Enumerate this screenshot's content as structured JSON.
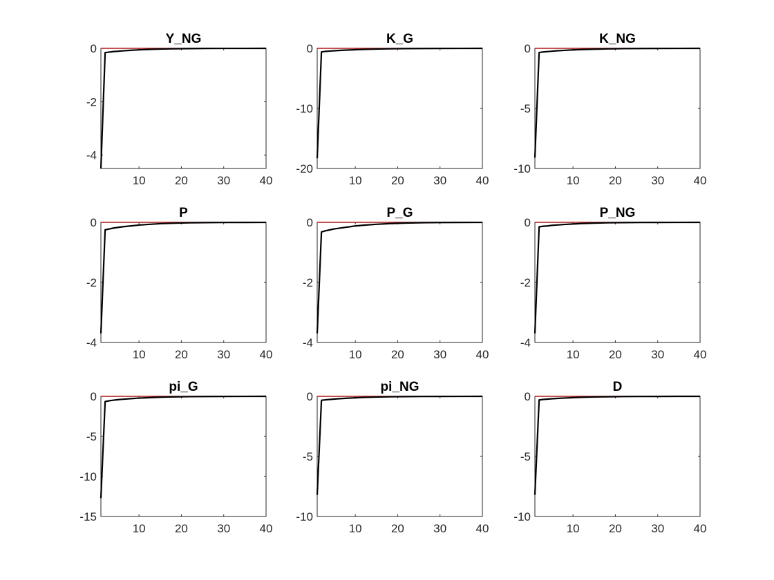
{
  "figure": {
    "rows": 3,
    "cols": 3,
    "line_color": "#000000",
    "zero_line_color": "#b01818",
    "axis_color": "#262626"
  },
  "chart_data": [
    {
      "type": "line",
      "title": "Y_NG",
      "xlabel": "",
      "ylabel": "",
      "xlim": [
        1,
        40
      ],
      "ylim": [
        -4.5,
        0
      ],
      "xticks": [
        10,
        20,
        30,
        40
      ],
      "yticks": [
        0,
        -2,
        -4
      ],
      "x": [
        1,
        2,
        3,
        4,
        5,
        6,
        8,
        10,
        12,
        15,
        18,
        22,
        26,
        30,
        35,
        40
      ],
      "series": [
        {
          "values": [
            -4.5,
            -0.16,
            -0.14,
            -0.12,
            -0.11,
            -0.095,
            -0.075,
            -0.057,
            -0.043,
            -0.027,
            -0.017,
            -0.009,
            -0.004,
            -0.002,
            -0.001,
            0
          ]
        }
      ],
      "reference_line": 0
    },
    {
      "type": "line",
      "title": "K_G",
      "xlabel": "",
      "ylabel": "",
      "xlim": [
        1,
        40
      ],
      "ylim": [
        -20,
        0
      ],
      "xticks": [
        10,
        20,
        30,
        40
      ],
      "yticks": [
        0,
        -10,
        -20
      ],
      "x": [
        1,
        2,
        3,
        4,
        5,
        6,
        8,
        10,
        12,
        15,
        18,
        22,
        26,
        30,
        35,
        40
      ],
      "series": [
        {
          "values": [
            -18.3,
            -0.6,
            -0.5,
            -0.45,
            -0.4,
            -0.36,
            -0.29,
            -0.23,
            -0.18,
            -0.12,
            -0.08,
            -0.045,
            -0.025,
            -0.013,
            -0.006,
            -0.002
          ]
        }
      ],
      "reference_line": 0
    },
    {
      "type": "line",
      "title": "K_NG",
      "xlabel": "",
      "ylabel": "",
      "xlim": [
        1,
        40
      ],
      "ylim": [
        -10,
        0
      ],
      "xticks": [
        10,
        20,
        30,
        40
      ],
      "yticks": [
        0,
        -5,
        -10
      ],
      "x": [
        1,
        2,
        3,
        4,
        5,
        6,
        8,
        10,
        12,
        15,
        18,
        22,
        26,
        30,
        35,
        40
      ],
      "series": [
        {
          "values": [
            -9.1,
            -0.35,
            -0.3,
            -0.27,
            -0.24,
            -0.21,
            -0.17,
            -0.13,
            -0.1,
            -0.07,
            -0.045,
            -0.025,
            -0.013,
            -0.007,
            -0.003,
            -0.001
          ]
        }
      ],
      "reference_line": 0
    },
    {
      "type": "line",
      "title": "P",
      "xlabel": "",
      "ylabel": "",
      "xlim": [
        1,
        40
      ],
      "ylim": [
        -4,
        0
      ],
      "xticks": [
        10,
        20,
        30,
        40
      ],
      "yticks": [
        0,
        -2,
        -4
      ],
      "x": [
        1,
        2,
        3,
        4,
        5,
        6,
        8,
        10,
        12,
        15,
        18,
        22,
        26,
        30,
        35,
        40
      ],
      "series": [
        {
          "values": [
            -3.7,
            -0.25,
            -0.22,
            -0.19,
            -0.17,
            -0.15,
            -0.12,
            -0.09,
            -0.07,
            -0.045,
            -0.03,
            -0.015,
            -0.008,
            -0.004,
            -0.002,
            -0.001
          ]
        }
      ],
      "reference_line": 0
    },
    {
      "type": "line",
      "title": "P_G",
      "xlabel": "",
      "ylabel": "",
      "xlim": [
        1,
        40
      ],
      "ylim": [
        -4,
        0
      ],
      "xticks": [
        10,
        20,
        30,
        40
      ],
      "yticks": [
        0,
        -2,
        -4
      ],
      "x": [
        1,
        2,
        3,
        4,
        5,
        6,
        8,
        10,
        12,
        15,
        18,
        22,
        26,
        30,
        35,
        40
      ],
      "series": [
        {
          "values": [
            -3.7,
            -0.32,
            -0.28,
            -0.25,
            -0.22,
            -0.2,
            -0.16,
            -0.12,
            -0.095,
            -0.065,
            -0.043,
            -0.023,
            -0.012,
            -0.006,
            -0.003,
            -0.001
          ]
        }
      ],
      "reference_line": 0
    },
    {
      "type": "line",
      "title": "P_NG",
      "xlabel": "",
      "ylabel": "",
      "xlim": [
        1,
        40
      ],
      "ylim": [
        -4,
        0
      ],
      "xticks": [
        10,
        20,
        30,
        40
      ],
      "yticks": [
        0,
        -2,
        -4
      ],
      "x": [
        1,
        2,
        3,
        4,
        5,
        6,
        8,
        10,
        12,
        15,
        18,
        22,
        26,
        30,
        35,
        40
      ],
      "series": [
        {
          "values": [
            -3.7,
            -0.15,
            -0.13,
            -0.12,
            -0.1,
            -0.09,
            -0.07,
            -0.055,
            -0.04,
            -0.026,
            -0.016,
            -0.008,
            -0.004,
            -0.002,
            -0.001,
            0
          ]
        }
      ],
      "reference_line": 0
    },
    {
      "type": "line",
      "title": "pi_G",
      "xlabel": "",
      "ylabel": "",
      "xlim": [
        1,
        40
      ],
      "ylim": [
        -15,
        0
      ],
      "xticks": [
        10,
        20,
        30,
        40
      ],
      "yticks": [
        0,
        -5,
        -10,
        -15
      ],
      "x": [
        1,
        2,
        3,
        4,
        5,
        6,
        8,
        10,
        12,
        15,
        18,
        22,
        26,
        30,
        35,
        40
      ],
      "series": [
        {
          "values": [
            -12.7,
            -0.65,
            -0.55,
            -0.48,
            -0.42,
            -0.37,
            -0.29,
            -0.22,
            -0.17,
            -0.11,
            -0.07,
            -0.038,
            -0.02,
            -0.01,
            -0.005,
            -0.002
          ]
        }
      ],
      "reference_line": 0
    },
    {
      "type": "line",
      "title": "pi_NG",
      "xlabel": "",
      "ylabel": "",
      "xlim": [
        1,
        40
      ],
      "ylim": [
        -10,
        0
      ],
      "xticks": [
        10,
        20,
        30,
        40
      ],
      "yticks": [
        0,
        -5,
        -10
      ],
      "x": [
        1,
        2,
        3,
        4,
        5,
        6,
        8,
        10,
        12,
        15,
        18,
        22,
        26,
        30,
        35,
        40
      ],
      "series": [
        {
          "values": [
            -8.2,
            -0.33,
            -0.29,
            -0.26,
            -0.23,
            -0.2,
            -0.16,
            -0.12,
            -0.09,
            -0.06,
            -0.04,
            -0.022,
            -0.012,
            -0.006,
            -0.003,
            -0.001
          ]
        }
      ],
      "reference_line": 0
    },
    {
      "type": "line",
      "title": "D",
      "xlabel": "",
      "ylabel": "",
      "xlim": [
        1,
        40
      ],
      "ylim": [
        -10,
        0
      ],
      "xticks": [
        10,
        20,
        30,
        40
      ],
      "yticks": [
        0,
        -5,
        -10
      ],
      "x": [
        1,
        2,
        3,
        4,
        5,
        6,
        8,
        10,
        12,
        15,
        18,
        22,
        26,
        30,
        35,
        40
      ],
      "series": [
        {
          "values": [
            -8.2,
            -0.3,
            -0.26,
            -0.23,
            -0.2,
            -0.18,
            -0.14,
            -0.11,
            -0.08,
            -0.055,
            -0.035,
            -0.019,
            -0.01,
            -0.005,
            -0.002,
            -0.001
          ]
        }
      ],
      "reference_line": 0
    }
  ]
}
